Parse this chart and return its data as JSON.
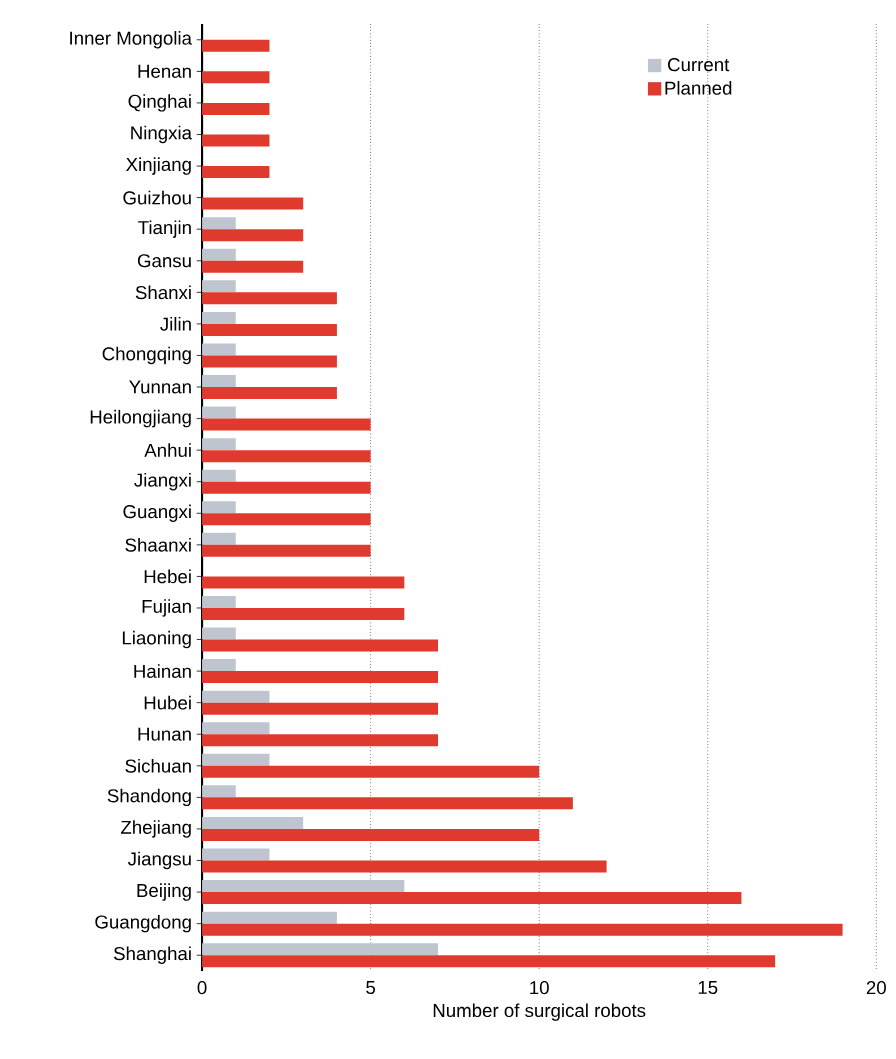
{
  "chart_data": {
    "type": "bar",
    "orientation": "horizontal",
    "xlabel": "Number of surgical robots",
    "categories": [
      "Inner Mongolia",
      "Henan",
      "Qinghai",
      "Ningxia",
      "Xinjiang",
      "Guizhou",
      "Tianjin",
      "Gansu",
      "Shanxi",
      "Jilin",
      "Chongqing",
      "Yunnan",
      "Heilongjiang",
      "Anhui",
      "Jiangxi",
      "Guangxi",
      "Shaanxi",
      "Hebei",
      "Fujian",
      "Liaoning",
      "Hainan",
      "Hubei",
      "Hunan",
      "Sichuan",
      "Shandong",
      "Zhejiang",
      "Jiangsu",
      "Beijing",
      "Guangdong",
      "Shanghai"
    ],
    "series": [
      {
        "name": "Current",
        "color": "#bfc5cf",
        "values": [
          null,
          null,
          null,
          null,
          null,
          null,
          1,
          1,
          1,
          1,
          1,
          1,
          1,
          1,
          1,
          1,
          1,
          null,
          1,
          1,
          1,
          2,
          2,
          2,
          1,
          3,
          2,
          6,
          4,
          7
        ]
      },
      {
        "name": "Planned",
        "color": "#e03a2f",
        "values": [
          2,
          2,
          2,
          2,
          2,
          3,
          3,
          3,
          4,
          4,
          4,
          4,
          5,
          5,
          5,
          5,
          5,
          6,
          6,
          7,
          7,
          7,
          7,
          10,
          11,
          10,
          12,
          16,
          19,
          17
        ]
      }
    ],
    "xlim": [
      0,
      20
    ],
    "xticks": [
      0,
      5,
      10,
      15,
      20
    ],
    "grid": "x",
    "legend": "top right"
  }
}
